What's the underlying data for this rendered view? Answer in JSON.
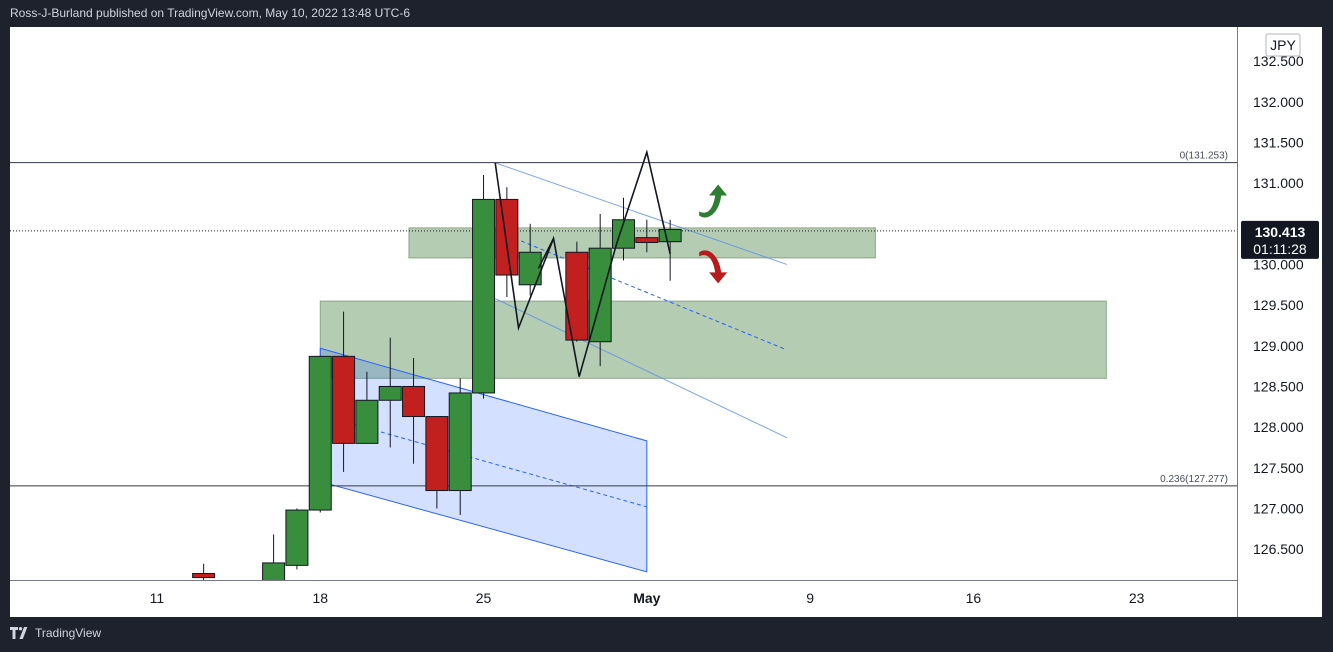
{
  "header": {
    "text": "Ross-J-Burland published on TradingView.com, May 10, 2022 13:48 UTC-6"
  },
  "footer": {
    "brand": "TradingView"
  },
  "chart_data": {
    "type": "candlestick",
    "currency": "JPY",
    "y_ticks": [
      126.5,
      127.0,
      127.5,
      128.0,
      128.5,
      129.0,
      129.5,
      130.0,
      131.0,
      131.5,
      132.0,
      132.5
    ],
    "ylim": [
      126.12,
      132.92
    ],
    "x_ticks": [
      {
        "label": "11",
        "day": 11
      },
      {
        "label": "18",
        "day": 18
      },
      {
        "label": "25",
        "day": 25
      },
      {
        "label": "May",
        "day": 32,
        "bold": true
      },
      {
        "label": "9",
        "day": 39
      },
      {
        "label": "16",
        "day": 46
      },
      {
        "label": "23",
        "day": 53
      }
    ],
    "xlim": [
      4.7,
      57.3
    ],
    "last_price": {
      "price": "130.413",
      "countdown": "01:11:28",
      "value": 130.413
    },
    "fib_levels": [
      {
        "label": "0(131.253)",
        "value": 131.253
      },
      {
        "label": "0.236(127.277)",
        "value": 127.277
      }
    ],
    "candles": [
      {
        "day": 13.0,
        "o": 126.2,
        "h": 126.32,
        "l": 126.1,
        "c": 126.15
      },
      {
        "day": 16.0,
        "o": 126.0,
        "h": 126.68,
        "l": 125.95,
        "c": 126.33
      },
      {
        "day": 17.0,
        "o": 126.3,
        "h": 127.0,
        "l": 126.25,
        "c": 126.98
      },
      {
        "day": 18.0,
        "o": 126.98,
        "h": 128.88,
        "l": 126.95,
        "c": 128.87
      },
      {
        "day": 19.0,
        "o": 128.87,
        "h": 129.42,
        "l": 127.45,
        "c": 127.8
      },
      {
        "day": 20.0,
        "o": 127.8,
        "h": 128.68,
        "l": 127.8,
        "c": 128.33
      },
      {
        "day": 21.0,
        "o": 128.33,
        "h": 129.1,
        "l": 127.75,
        "c": 128.5
      },
      {
        "day": 22.0,
        "o": 128.5,
        "h": 128.85,
        "l": 127.55,
        "c": 128.13
      },
      {
        "day": 23.0,
        "o": 128.13,
        "h": 128.13,
        "l": 127.0,
        "c": 127.22
      },
      {
        "day": 24.0,
        "o": 127.22,
        "h": 128.6,
        "l": 126.92,
        "c": 128.42
      },
      {
        "day": 25.0,
        "o": 128.42,
        "h": 131.1,
        "l": 128.35,
        "c": 130.8
      },
      {
        "day": 26.0,
        "o": 130.8,
        "h": 130.95,
        "l": 129.6,
        "c": 129.87
      },
      {
        "day": 27.0,
        "o": 129.75,
        "h": 130.5,
        "l": 129.62,
        "c": 130.15
      },
      {
        "day": 29.0,
        "o": 130.15,
        "h": 130.28,
        "l": 129.05,
        "c": 129.07
      },
      {
        "day": 30.0,
        "o": 129.05,
        "h": 130.62,
        "l": 128.75,
        "c": 130.2
      },
      {
        "day": 31.0,
        "o": 130.2,
        "h": 130.82,
        "l": 130.05,
        "c": 130.55
      },
      {
        "day": 32.0,
        "o": 130.33,
        "h": 130.55,
        "l": 130.15,
        "c": 130.27
      },
      {
        "day": 33.0,
        "o": 130.28,
        "h": 130.55,
        "l": 129.8,
        "c": 130.43
      }
    ]
  }
}
